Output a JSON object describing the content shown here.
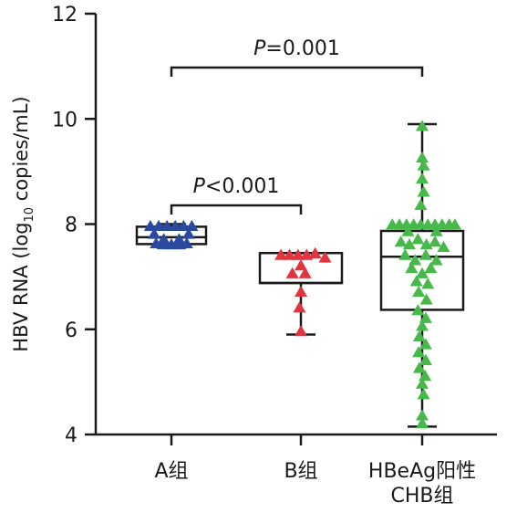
{
  "chart_data": {
    "type": "box-scatter",
    "ylabel_main": "HBV RNA (log",
    "ylabel_sub": "10",
    "ylabel_tail": " copies/mL)",
    "ylim": [
      4,
      12
    ],
    "yticks": [
      4,
      6,
      8,
      10,
      12
    ],
    "y_tick_labels": [
      "4",
      "6",
      "8",
      "10",
      "12"
    ],
    "categories": [
      {
        "label_lines": [
          "A组"
        ]
      },
      {
        "label_lines": [
          "B组"
        ]
      },
      {
        "label_lines": [
          "HBeAg阳性",
          "CHB组"
        ]
      }
    ],
    "groups": [
      {
        "color": "#2a4aa0",
        "box": {
          "min": 7.55,
          "q1": 7.62,
          "median": 7.75,
          "q3": 7.95,
          "max": 8.0
        },
        "points": [
          {
            "x": -0.33,
            "y": 7.95
          },
          {
            "x": -0.2,
            "y": 7.95
          },
          {
            "x": -0.07,
            "y": 7.95
          },
          {
            "x": 0.06,
            "y": 7.95
          },
          {
            "x": 0.19,
            "y": 7.95
          },
          {
            "x": 0.32,
            "y": 7.95
          },
          {
            "x": -0.27,
            "y": 7.8
          },
          {
            "x": 0.27,
            "y": 7.8
          },
          {
            "x": -0.24,
            "y": 7.62
          },
          {
            "x": -0.12,
            "y": 7.6
          },
          {
            "x": 0.0,
            "y": 7.6
          },
          {
            "x": 0.12,
            "y": 7.6
          },
          {
            "x": 0.24,
            "y": 7.62
          },
          {
            "x": -0.12,
            "y": 7.7
          },
          {
            "x": 0.12,
            "y": 7.7
          }
        ]
      },
      {
        "color": "#e0353f",
        "box": {
          "min": 5.9,
          "q1": 6.88,
          "median": 6.88,
          "q3": 7.45,
          "max": 7.45
        },
        "points": [
          {
            "x": -0.28,
            "y": 7.4
          },
          {
            "x": -0.16,
            "y": 7.4
          },
          {
            "x": -0.04,
            "y": 7.4
          },
          {
            "x": 0.08,
            "y": 7.4
          },
          {
            "x": 0.2,
            "y": 7.43
          },
          {
            "x": 0.34,
            "y": 7.35
          },
          {
            "x": 0.0,
            "y": 7.2
          },
          {
            "x": -0.12,
            "y": 7.05
          },
          {
            "x": 0.06,
            "y": 7.05
          },
          {
            "x": 0.0,
            "y": 6.7
          },
          {
            "x": -0.02,
            "y": 6.4
          },
          {
            "x": 0.0,
            "y": 5.95
          }
        ]
      },
      {
        "color": "#46b94a",
        "box": {
          "min": 4.15,
          "q1": 6.37,
          "median": 7.38,
          "q3": 7.87,
          "max": 9.9
        },
        "points": [
          {
            "x": 0.0,
            "y": 9.85
          },
          {
            "x": 0.0,
            "y": 9.25
          },
          {
            "x": 0.02,
            "y": 9.1
          },
          {
            "x": 0.0,
            "y": 8.85
          },
          {
            "x": 0.02,
            "y": 8.6
          },
          {
            "x": -0.02,
            "y": 8.35
          },
          {
            "x": -0.42,
            "y": 7.98
          },
          {
            "x": -0.32,
            "y": 7.98
          },
          {
            "x": -0.22,
            "y": 7.98
          },
          {
            "x": -0.12,
            "y": 7.98
          },
          {
            "x": -0.02,
            "y": 7.98
          },
          {
            "x": 0.08,
            "y": 7.98
          },
          {
            "x": 0.18,
            "y": 7.98
          },
          {
            "x": 0.28,
            "y": 7.98
          },
          {
            "x": 0.38,
            "y": 7.98
          },
          {
            "x": 0.46,
            "y": 7.98
          },
          {
            "x": -0.2,
            "y": 7.85
          },
          {
            "x": 0.2,
            "y": 7.85
          },
          {
            "x": -0.3,
            "y": 7.65
          },
          {
            "x": -0.18,
            "y": 7.6
          },
          {
            "x": -0.06,
            "y": 7.7
          },
          {
            "x": 0.06,
            "y": 7.6
          },
          {
            "x": 0.18,
            "y": 7.65
          },
          {
            "x": 0.3,
            "y": 7.55
          },
          {
            "x": -0.24,
            "y": 7.4
          },
          {
            "x": -0.1,
            "y": 7.3
          },
          {
            "x": 0.05,
            "y": 7.4
          },
          {
            "x": 0.2,
            "y": 7.3
          },
          {
            "x": -0.15,
            "y": 7.15
          },
          {
            "x": 0.0,
            "y": 7.05
          },
          {
            "x": 0.12,
            "y": 7.15
          },
          {
            "x": -0.08,
            "y": 6.9
          },
          {
            "x": 0.08,
            "y": 6.85
          },
          {
            "x": -0.05,
            "y": 6.7
          },
          {
            "x": 0.06,
            "y": 6.55
          },
          {
            "x": -0.06,
            "y": 6.35
          },
          {
            "x": 0.05,
            "y": 6.2
          },
          {
            "x": 0.0,
            "y": 6.05
          },
          {
            "x": -0.04,
            "y": 5.85
          },
          {
            "x": 0.05,
            "y": 5.7
          },
          {
            "x": -0.05,
            "y": 5.55
          },
          {
            "x": 0.05,
            "y": 5.4
          },
          {
            "x": -0.04,
            "y": 5.25
          },
          {
            "x": 0.04,
            "y": 5.1
          },
          {
            "x": 0.0,
            "y": 4.95
          },
          {
            "x": 0.02,
            "y": 4.75
          },
          {
            "x": 0.0,
            "y": 4.35
          },
          {
            "x": 0.0,
            "y": 4.2
          }
        ]
      }
    ],
    "comparisons": [
      {
        "from": 0,
        "to": 2,
        "p_symbol": "P",
        "p_rest": "=0.001"
      },
      {
        "from": 0,
        "to": 1,
        "p_symbol": "P",
        "p_rest": "<0.001"
      }
    ]
  }
}
